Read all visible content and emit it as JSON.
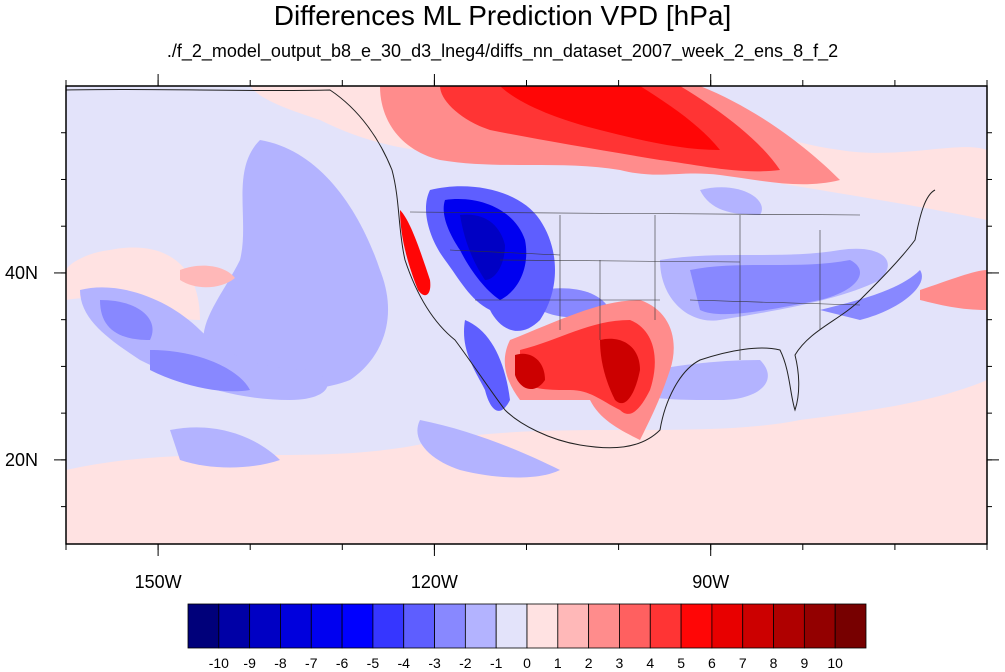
{
  "figure": {
    "title": "Differences ML Prediction VPD [hPa]",
    "subtitle": "./f_2_model_output_b8_e_30_d3_lneg4/diffs_nn_dataset_2007_week_2_ens_8_f_2"
  },
  "map": {
    "lon_range": [
      -160,
      -60
    ],
    "lat_range": [
      11,
      60
    ],
    "x_ticks": [
      {
        "value": -150,
        "label": "150W"
      },
      {
        "value": -120,
        "label": "120W"
      },
      {
        "value": -90,
        "label": "90W"
      }
    ],
    "y_ticks": [
      {
        "value": 40,
        "label": "40N"
      },
      {
        "value": 20,
        "label": "20N"
      }
    ],
    "coastlines": true
  },
  "colorbar": {
    "labels": [
      "-10",
      "-9",
      "-8",
      "-7",
      "-6",
      "-5",
      "-4",
      "-3",
      "-2",
      "-1",
      "0",
      "1",
      "2",
      "3",
      "4",
      "5",
      "6",
      "7",
      "8",
      "9",
      "10"
    ],
    "colors": [
      "#00007a",
      "#0000a6",
      "#0000c4",
      "#0000dd",
      "#0000f0",
      "#0000ff",
      "#3636ff",
      "#5e5eff",
      "#8888ff",
      "#b3b3ff",
      "#e3e3fa",
      "#ffe2e2",
      "#ffb8b8",
      "#ff8c8c",
      "#ff6060",
      "#ff3434",
      "#ff0606",
      "#e80000",
      "#cc0000",
      "#af0000",
      "#930000",
      "#770000"
    ]
  }
}
